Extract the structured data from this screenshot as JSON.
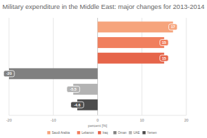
{
  "chart_data": {
    "type": "bar",
    "title": "Military expenditure in the Middle East: major changes for 2013-2014",
    "orientation": "horizontal",
    "categories": [
      "Saudi Arabia",
      "Lebanon",
      "Iraq",
      "Oman",
      "UAE",
      "Yemen"
    ],
    "values": [
      17,
      15,
      15,
      -20,
      -5.5,
      -4.6
    ],
    "colors": [
      "#f6a47c",
      "#f07f5e",
      "#e6654a",
      "#808080",
      "#b3b3b3",
      "#4d4d4d"
    ],
    "xlabel": "percent [%]",
    "xlim": [
      -20,
      20
    ],
    "xticks": [
      -20,
      -10,
      0,
      10,
      20
    ],
    "grid": true,
    "data_labels": true,
    "legend": "bottom"
  }
}
